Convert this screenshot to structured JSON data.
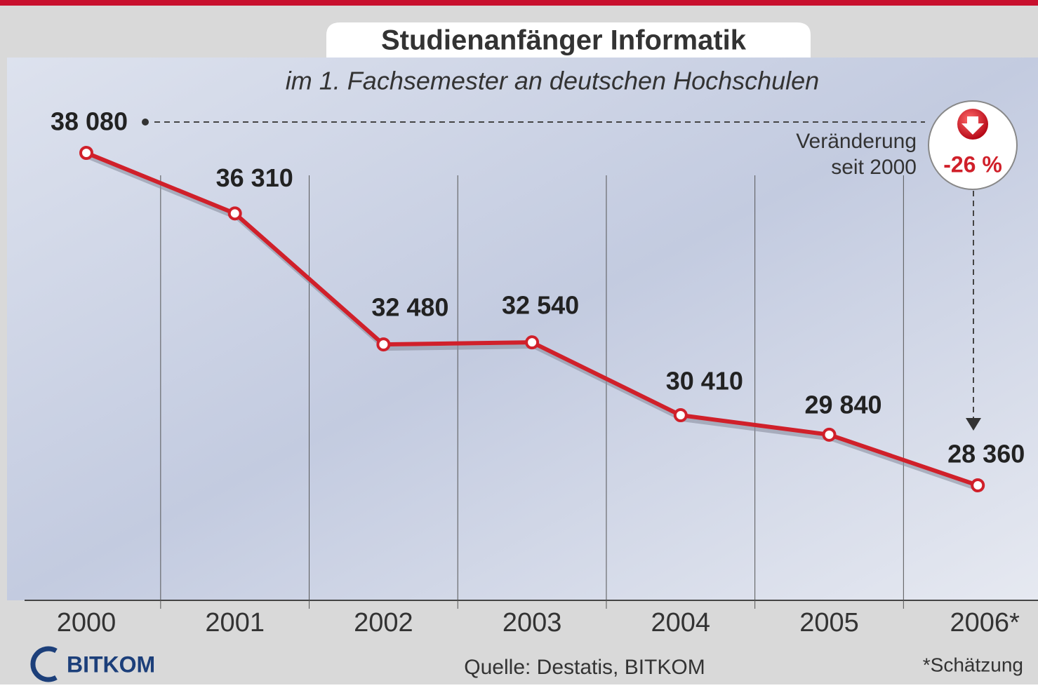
{
  "chart_data": {
    "type": "line",
    "title": "Studienanfänger Informatik",
    "subtitle": "im 1. Fachsemester an deutschen Hochschulen",
    "categories": [
      "2000",
      "2001",
      "2002",
      "2003",
      "2004",
      "2005",
      "2006*"
    ],
    "values": [
      38080,
      36310,
      32480,
      32540,
      30410,
      29840,
      28360
    ],
    "value_labels": [
      "38 080",
      "36 310",
      "32 480",
      "32 540",
      "30 410",
      "29 840",
      "28 360"
    ],
    "color": "#d0202a",
    "annotations": {
      "change_label": [
        "Veränderung",
        "seit 2000"
      ],
      "change_value": "-26 %"
    },
    "source": "Quelle: Destatis, BITKOM",
    "footnote": "*Schätzung",
    "logo": "BITKOM"
  }
}
